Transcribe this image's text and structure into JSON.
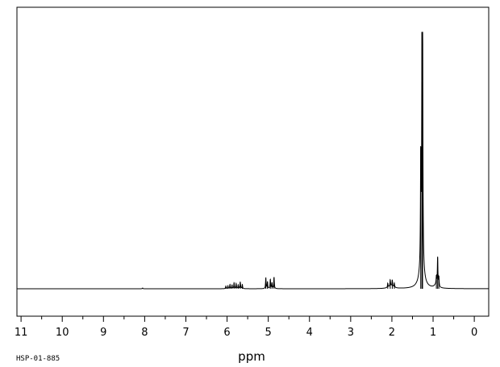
{
  "chart_data": {
    "type": "line",
    "xlabel": "ppm",
    "x_reversed": true,
    "xlim": [
      11.1,
      -0.35
    ],
    "ylim": [
      0,
      100
    ],
    "x_ticks": [
      "11",
      "10",
      "9",
      "8",
      "7",
      "6",
      "5",
      "4",
      "3",
      "2",
      "1",
      "0"
    ],
    "grid": false,
    "line_color": "#000000",
    "spectrum_id": "HSP-01-885",
    "peaks": [
      {
        "ppm": 8.05,
        "height": 0.3
      },
      {
        "ppm": 6.03,
        "height": 1.0
      },
      {
        "ppm": 5.98,
        "height": 1.1
      },
      {
        "ppm": 5.93,
        "height": 1.6
      },
      {
        "ppm": 5.88,
        "height": 1.4
      },
      {
        "ppm": 5.83,
        "height": 2.2
      },
      {
        "ppm": 5.78,
        "height": 1.9
      },
      {
        "ppm": 5.73,
        "height": 1.4
      },
      {
        "ppm": 5.68,
        "height": 2.6
      },
      {
        "ppm": 5.63,
        "height": 1.6
      },
      {
        "ppm": 5.06,
        "height": 4.1
      },
      {
        "ppm": 5.02,
        "height": 2.6
      },
      {
        "ppm": 4.95,
        "height": 3.5
      },
      {
        "ppm": 4.91,
        "height": 2.2
      },
      {
        "ppm": 4.86,
        "height": 4.4
      },
      {
        "ppm": 2.1,
        "height": 1.6
      },
      {
        "ppm": 2.04,
        "height": 2.5
      },
      {
        "ppm": 1.99,
        "height": 2.5
      },
      {
        "ppm": 1.94,
        "height": 1.6
      },
      {
        "ppm": 1.3,
        "height": 41
      },
      {
        "ppm": 1.27,
        "height": 76
      },
      {
        "ppm": 1.255,
        "height": 100
      },
      {
        "ppm": 0.92,
        "height": 3.0
      },
      {
        "ppm": 0.89,
        "height": 11
      },
      {
        "ppm": 0.86,
        "height": 3.5
      }
    ]
  }
}
